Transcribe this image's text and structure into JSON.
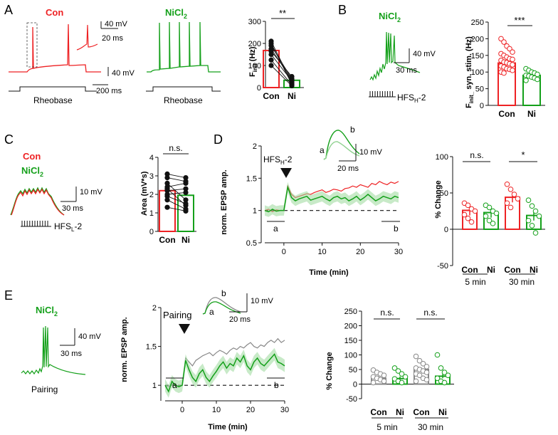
{
  "colors": {
    "con": "#ee2224",
    "ni": "#14a01a",
    "gray": "#888888",
    "light_green": "#9bd89b",
    "black": "#111111"
  },
  "panels": {
    "A": {
      "letter": "A",
      "con_label": "Con",
      "ni_label": "NiCl",
      "ni_sub": "2",
      "scale_40mv": "40 mV",
      "scale_20ms": "20 ms",
      "scale_200ms": "200 ms",
      "rheobase": "Rheobase",
      "ylabel_main": "F",
      "ylabel_sub": "init",
      "ylabel_unit": " (Hz)",
      "sig": "**"
    },
    "B": {
      "letter": "B",
      "ni_label": "NiCl",
      "ni_sub": "2",
      "scale_40mv": "40 mV",
      "scale_30ms": "30 ms",
      "stim_main": "HFS",
      "stim_sub": "H",
      "stim_suffix": "-2",
      "ylabel_main": "F",
      "ylabel_sub": "init_",
      "ylabel_rest": " syn. stim. (Hz)",
      "sig": "***"
    },
    "C": {
      "letter": "C",
      "con_label": "Con",
      "ni_label": "NiCl",
      "ni_sub": "2",
      "scale_10mv": "10 mV",
      "scale_30ms": "30 ms",
      "stim_main": "HFS",
      "stim_sub": "L",
      "stim_suffix": "-2",
      "ylabel": "Area (mV*s)",
      "sig": "n.s."
    },
    "D": {
      "letter": "D",
      "stim_main": "HFS",
      "stim_sub": "H",
      "stim_suffix": "-2",
      "trace_a": "a",
      "trace_b": "b",
      "scale_10mv": "10 mV",
      "scale_20ms": "20 ms",
      "ylabel": "norm. EPSP amp.",
      "xlabel": "Time (min)",
      "bar_ylabel": "% Change",
      "sig_5": "n.s.",
      "sig_30": "*",
      "group_5": "5 min",
      "group_30": "30 min"
    },
    "E": {
      "letter": "E",
      "ni_label": "NiCl",
      "ni_sub": "2",
      "scale_40mv": "40 mV",
      "scale_30ms": "30 ms",
      "pairing_label": "Pairing",
      "trace_a": "a",
      "trace_b": "b",
      "scale_10mv": "10 mV",
      "scale_20ms": "20 ms",
      "ylabel": "norm. EPSP amp.",
      "xlabel": "Time (min)",
      "bar_ylabel": "% Change",
      "sig_5": "n.s.",
      "sig_30": "n.s.",
      "group_5": "5 min",
      "group_30": "30 min"
    }
  },
  "chart_data": [
    {
      "id": "A_finit",
      "type": "bar",
      "categories": [
        "Con",
        "Ni"
      ],
      "values": [
        168,
        33
      ],
      "yticks": [
        0,
        100,
        200,
        300
      ],
      "ylim": [
        0,
        300
      ],
      "ylabel": "Finit (Hz)",
      "paired_lines": [
        [
          210,
          22
        ],
        [
          200,
          15
        ],
        [
          190,
          40
        ],
        [
          175,
          35
        ],
        [
          165,
          50
        ],
        [
          150,
          30
        ],
        [
          125,
          12
        ],
        [
          100,
          8
        ]
      ]
    },
    {
      "id": "B_finit_syn",
      "type": "bar",
      "categories": [
        "Con",
        "Ni"
      ],
      "values": [
        127,
        90
      ],
      "yticks": [
        0,
        50,
        100,
        150,
        200,
        250
      ],
      "ylim": [
        0,
        250
      ],
      "ylabel": "Finit_ syn. stim. (Hz)",
      "points": {
        "Con": [
          200,
          190,
          178,
          170,
          160,
          155,
          150,
          145,
          140,
          138,
          135,
          130,
          128,
          125,
          122,
          118,
          115,
          110,
          108,
          105,
          100,
          97
        ],
        "Ni": [
          110,
          105,
          100,
          97,
          93,
          90,
          88,
          85,
          82,
          78,
          75
        ]
      }
    },
    {
      "id": "C_area",
      "type": "bar",
      "categories": [
        "Con",
        "Ni"
      ],
      "values": [
        2.2,
        1.95
      ],
      "yticks": [
        0,
        1,
        2,
        3,
        4
      ],
      "ylim": [
        0,
        4
      ],
      "ylabel": "Area (mV*s)",
      "paired_lines": [
        [
          3.1,
          2.9
        ],
        [
          2.9,
          2.7
        ],
        [
          2.6,
          1.7
        ],
        [
          2.4,
          2.6
        ],
        [
          2.3,
          1.4
        ],
        [
          2.2,
          2.3
        ],
        [
          2.0,
          2.1
        ],
        [
          1.9,
          1.5
        ],
        [
          1.7,
          1.2
        ],
        [
          1.3,
          1.1
        ]
      ]
    },
    {
      "id": "D_timecourse",
      "type": "line",
      "xlabel": "Time (min)",
      "ylabel": "norm. EPSP amp.",
      "xticks": [
        0,
        10,
        20,
        30
      ],
      "yticks": [
        0.5,
        1.0,
        1.5,
        2.0
      ],
      "xlim": [
        -5,
        30
      ],
      "ylim": [
        0.5,
        2.0
      ],
      "series": [
        {
          "name": "Con",
          "x": [
            -5,
            -4,
            -3,
            -2,
            -1,
            0,
            1,
            2,
            3,
            4,
            5,
            6,
            7,
            8,
            9,
            10,
            11,
            12,
            13,
            14,
            15,
            16,
            17,
            18,
            19,
            20,
            21,
            22,
            23,
            24,
            25,
            26,
            27,
            28,
            29,
            30
          ],
          "y": [
            1.0,
            1.02,
            0.98,
            1.01,
            1.0,
            1.0,
            1.38,
            1.25,
            1.2,
            1.22,
            1.24,
            1.26,
            1.25,
            1.28,
            1.3,
            1.32,
            1.28,
            1.3,
            1.33,
            1.32,
            1.3,
            1.34,
            1.35,
            1.38,
            1.36,
            1.4,
            1.38,
            1.36,
            1.42,
            1.4,
            1.45,
            1.42,
            1.4,
            1.44,
            1.42,
            1.45
          ]
        },
        {
          "name": "Ni",
          "x": [
            -5,
            -4,
            -3,
            -2,
            -1,
            0,
            1,
            2,
            3,
            4,
            5,
            6,
            7,
            8,
            9,
            10,
            11,
            12,
            13,
            14,
            15,
            16,
            17,
            18,
            19,
            20,
            21,
            22,
            23,
            24,
            25,
            26,
            27,
            28,
            29,
            30
          ],
          "y": [
            1.0,
            0.98,
            1.02,
            0.99,
            1.0,
            1.0,
            1.36,
            1.2,
            1.15,
            1.18,
            1.2,
            1.22,
            1.16,
            1.18,
            1.2,
            1.22,
            1.18,
            1.15,
            1.2,
            1.22,
            1.18,
            1.2,
            1.15,
            1.18,
            1.22,
            1.16,
            1.2,
            1.25,
            1.2,
            1.15,
            1.18,
            1.22,
            1.2,
            1.18,
            1.22,
            1.2
          ]
        }
      ]
    },
    {
      "id": "D_percent",
      "type": "bar",
      "categories": [
        "Con",
        "Ni",
        "Con",
        "Ni"
      ],
      "groups": [
        "5 min",
        "5 min",
        "30 min",
        "30 min"
      ],
      "values": [
        26,
        23,
        44,
        19
      ],
      "yticks": [
        -50,
        0,
        50,
        100
      ],
      "ylim": [
        -50,
        100
      ],
      "ylabel": "% Change",
      "points": [
        [
          36,
          33,
          28,
          25,
          20,
          15,
          10
        ],
        [
          33,
          30,
          25,
          22,
          18,
          12,
          8
        ],
        [
          62,
          55,
          48,
          42,
          36,
          30
        ],
        [
          40,
          32,
          25,
          18,
          12,
          5,
          -5
        ]
      ]
    },
    {
      "id": "E_timecourse",
      "type": "line",
      "xlabel": "Time (min)",
      "ylabel": "norm. EPSP amp.",
      "xticks": [
        0,
        10,
        20,
        30
      ],
      "yticks": [
        1.0,
        1.5,
        2.0
      ],
      "xlim": [
        -5,
        30
      ],
      "ylim": [
        0.8,
        2.0
      ],
      "series": [
        {
          "name": "Con",
          "x": [
            -5,
            -4,
            -3,
            -2,
            -1,
            0,
            1,
            2,
            3,
            4,
            5,
            6,
            7,
            8,
            9,
            10,
            11,
            12,
            13,
            14,
            15,
            16,
            17,
            18,
            19,
            20,
            21,
            22,
            23,
            24,
            25,
            26,
            27,
            28,
            29,
            30
          ],
          "y": [
            1.0,
            0.98,
            1.02,
            1.0,
            0.99,
            1.0,
            1.35,
            1.3,
            1.25,
            1.32,
            1.35,
            1.38,
            1.4,
            1.42,
            1.38,
            1.42,
            1.45,
            1.43,
            1.4,
            1.45,
            1.48,
            1.46,
            1.5,
            1.48,
            1.52,
            1.55,
            1.5,
            1.48,
            1.52,
            1.5,
            1.55,
            1.58,
            1.55,
            1.6,
            1.55,
            1.58
          ]
        },
        {
          "name": "Ni",
          "x": [
            -5,
            -4,
            -3,
            -2,
            -1,
            0,
            1,
            2,
            3,
            4,
            5,
            6,
            7,
            8,
            9,
            10,
            11,
            12,
            13,
            14,
            15,
            16,
            17,
            18,
            19,
            20,
            21,
            22,
            23,
            24,
            25,
            26,
            27,
            28,
            29,
            30
          ],
          "y": [
            1.0,
            0.92,
            1.05,
            1.0,
            0.98,
            1.0,
            1.32,
            1.2,
            1.1,
            1.05,
            1.15,
            1.2,
            1.1,
            1.05,
            1.12,
            1.18,
            1.25,
            1.3,
            1.22,
            1.28,
            1.25,
            1.35,
            1.3,
            1.38,
            1.25,
            1.2,
            1.3,
            1.35,
            1.28,
            1.25,
            1.3,
            1.35,
            1.4,
            1.3,
            1.28,
            1.25
          ]
        }
      ]
    },
    {
      "id": "E_percent",
      "type": "bar",
      "categories": [
        "Con",
        "Ni",
        "Con",
        "Ni"
      ],
      "groups": [
        "5 min",
        "5 min",
        "30 min",
        "30 min"
      ],
      "values": [
        20,
        19,
        50,
        27
      ],
      "yticks": [
        -50,
        0,
        50,
        100,
        150,
        200,
        250
      ],
      "ylim": [
        -50,
        250
      ],
      "ylabel": "% Change",
      "points": [
        [
          48,
          40,
          35,
          30,
          25,
          20,
          15,
          10,
          5
        ],
        [
          55,
          45,
          35,
          25,
          18,
          10,
          5
        ],
        [
          95,
          80,
          70,
          60,
          55,
          50,
          45,
          40,
          35,
          30,
          20,
          15,
          10
        ],
        [
          100,
          55,
          40,
          30,
          20,
          10,
          5
        ]
      ]
    }
  ]
}
